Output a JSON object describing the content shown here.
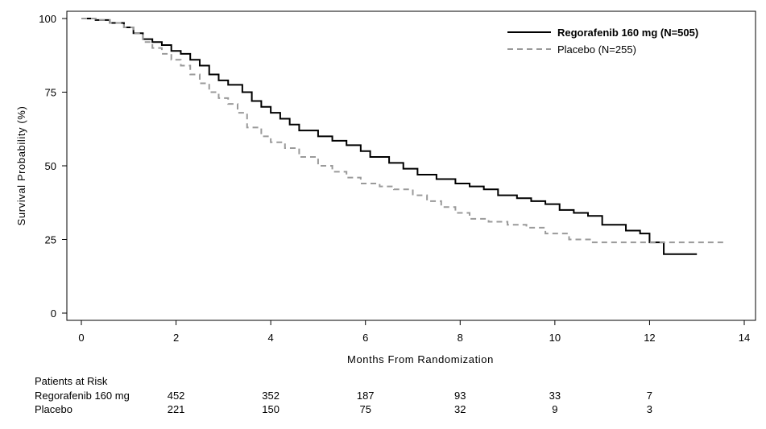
{
  "chart_data": {
    "type": "line",
    "title": "",
    "xlabel": "Months From Randomization",
    "ylabel": "Survival Probability (%)",
    "xlim": [
      0,
      14
    ],
    "ylim": [
      0,
      100
    ],
    "xticks": [
      0,
      2,
      4,
      6,
      8,
      10,
      12,
      14
    ],
    "yticks": [
      0,
      25,
      50,
      75,
      100
    ],
    "grid": false,
    "legend_position": "top-right",
    "series": [
      {
        "name": "Regorafenib 160 mg (N=505)",
        "color": "#000000",
        "dash": "solid",
        "x": [
          0,
          0.3,
          0.6,
          0.9,
          1.1,
          1.3,
          1.5,
          1.7,
          1.9,
          2.1,
          2.3,
          2.5,
          2.7,
          2.9,
          3.1,
          3.4,
          3.6,
          3.8,
          4.0,
          4.2,
          4.4,
          4.6,
          5.0,
          5.3,
          5.6,
          5.9,
          6.1,
          6.5,
          6.8,
          7.1,
          7.5,
          7.9,
          8.2,
          8.5,
          8.8,
          9.2,
          9.5,
          9.8,
          10.1,
          10.4,
          10.7,
          11.0,
          11.5,
          11.8,
          12.0,
          12.3,
          13.0
        ],
        "y": [
          100,
          99.5,
          98.5,
          97,
          95,
          93,
          92,
          91,
          89,
          88,
          86,
          84,
          81,
          79,
          77.5,
          75,
          72,
          70,
          68,
          66,
          64,
          62,
          60,
          58.5,
          57,
          55,
          53,
          51,
          49,
          47,
          45.5,
          44,
          43,
          42,
          40,
          39,
          38,
          37,
          35,
          34,
          33,
          30,
          28,
          27,
          24,
          20,
          20
        ]
      },
      {
        "name": "Placebo (N=255)",
        "color": "#9a9a9a",
        "dash": "dashed",
        "x": [
          0,
          0.3,
          0.6,
          0.9,
          1.1,
          1.3,
          1.5,
          1.7,
          1.9,
          2.1,
          2.3,
          2.5,
          2.7,
          2.9,
          3.1,
          3.3,
          3.5,
          3.8,
          4.0,
          4.3,
          4.6,
          5.0,
          5.3,
          5.6,
          5.9,
          6.3,
          6.6,
          7.0,
          7.3,
          7.6,
          7.9,
          8.2,
          8.6,
          9.0,
          9.4,
          9.8,
          10.3,
          10.8,
          11.5,
          12.0,
          13.6
        ],
        "y": [
          100,
          99.5,
          98.5,
          97,
          95,
          92,
          90,
          88,
          86,
          84,
          81,
          78,
          75,
          73,
          71,
          68,
          63,
          60,
          58,
          56,
          53,
          50,
          48,
          46,
          44,
          43,
          42,
          40,
          38,
          36,
          34,
          32,
          31,
          30,
          29,
          27,
          25,
          24,
          24,
          24,
          24
        ]
      }
    ]
  },
  "risk_table": {
    "title": "Patients at Risk",
    "columns_x": [
      2,
      4,
      6,
      8,
      10,
      12
    ],
    "rows": [
      {
        "label": "Regorafenib 160 mg",
        "values": [
          "452",
          "352",
          "187",
          "93",
          "33",
          "7"
        ]
      },
      {
        "label": "Placebo",
        "values": [
          "221",
          "150",
          "75",
          "32",
          "9",
          "3"
        ]
      }
    ]
  }
}
